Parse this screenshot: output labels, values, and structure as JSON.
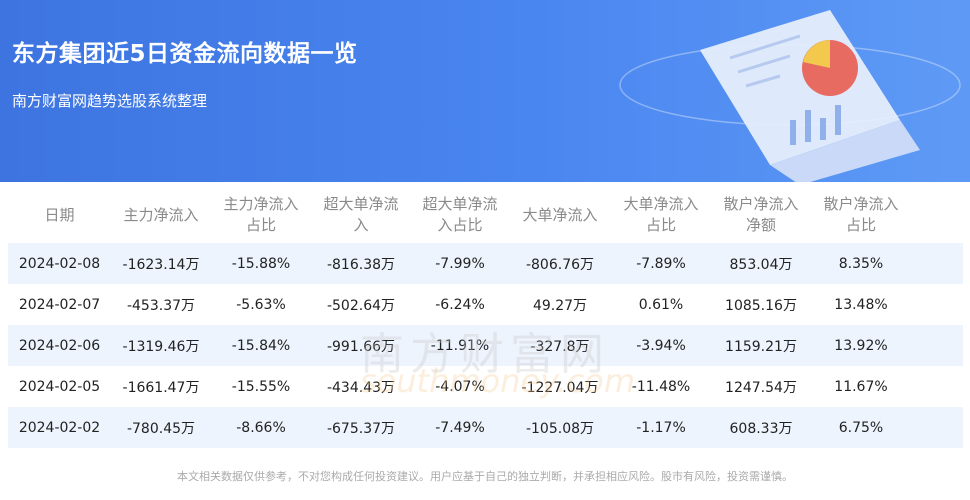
{
  "header": {
    "title": "东方集团近5日资金流向数据一览",
    "subtitle": "南方财富网趋势选股系统整理"
  },
  "table": {
    "columns": [
      "日期",
      "主力净流入",
      "主力净流入\n占比",
      "超大单净流\n入",
      "超大单净流\n入占比",
      "大单净流入",
      "大单净流入\n占比",
      "散户净流入\n净额",
      "散户净流入\n占比"
    ],
    "rows": [
      [
        "2024-02-08",
        "-1623.14万",
        "-15.88%",
        "-816.38万",
        "-7.99%",
        "-806.76万",
        "-7.89%",
        "853.04万",
        "8.35%"
      ],
      [
        "2024-02-07",
        "-453.37万",
        "-5.63%",
        "-502.64万",
        "-6.24%",
        "49.27万",
        "0.61%",
        "1085.16万",
        "13.48%"
      ],
      [
        "2024-02-06",
        "-1319.46万",
        "-15.84%",
        "-991.66万",
        "-11.91%",
        "-327.8万",
        "-3.94%",
        "1159.21万",
        "13.92%"
      ],
      [
        "2024-02-05",
        "-1661.47万",
        "-15.55%",
        "-434.43万",
        "-4.07%",
        "-1227.04万",
        "-11.48%",
        "1247.54万",
        "11.67%"
      ],
      [
        "2024-02-02",
        "-780.45万",
        "-8.66%",
        "-675.37万",
        "-7.49%",
        "-105.08万",
        "-1.17%",
        "608.33万",
        "6.75%"
      ]
    ]
  },
  "watermark": {
    "cn": "南方财富网",
    "en": "southmoney.com"
  },
  "footer": {
    "disclaimer": "本文相关数据仅供参考，不对您构成任何投资建议。用户应基于自己的独立判断，并承担相应风险。股市有风险，投资需谨慎。"
  },
  "colors": {
    "banner": "#4a86f0",
    "row_alt": "#eef4fd"
  }
}
